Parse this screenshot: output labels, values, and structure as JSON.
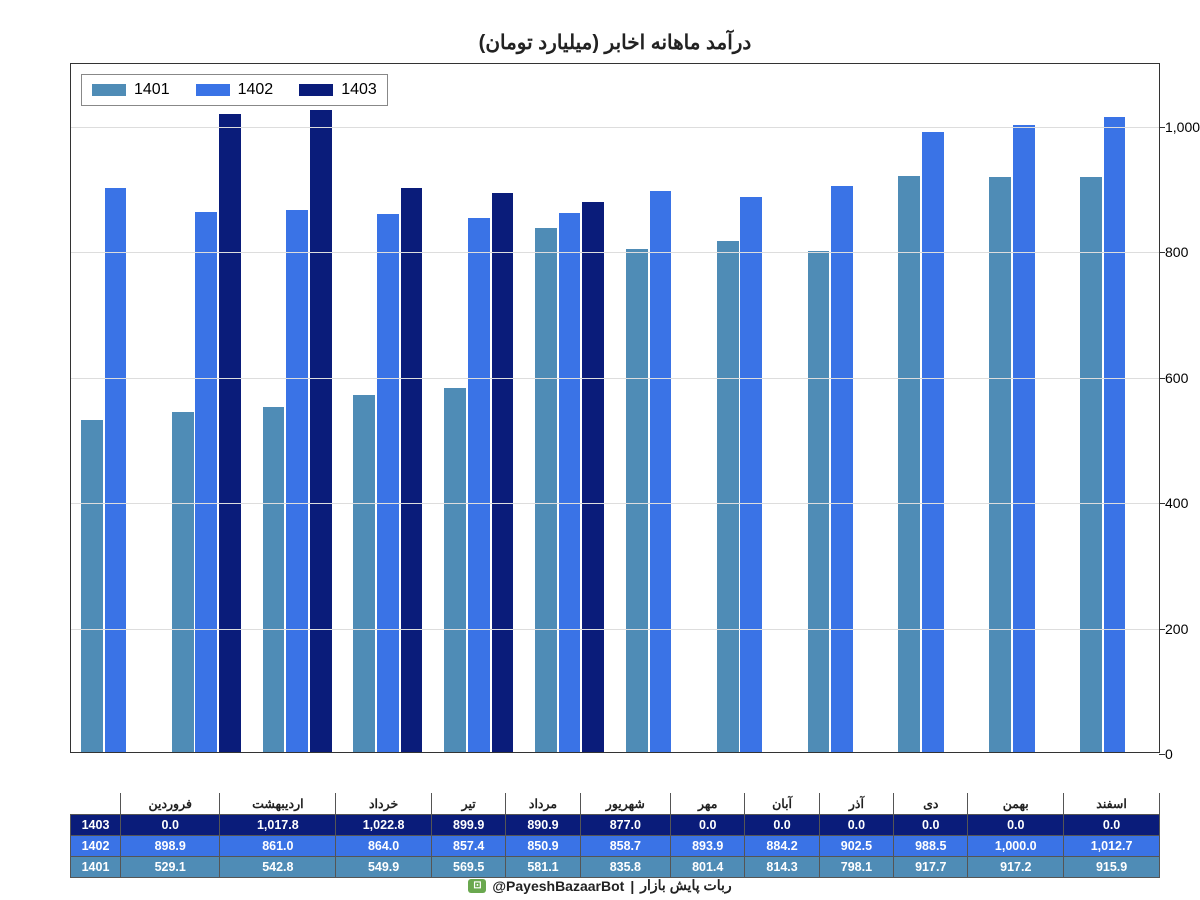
{
  "chart": {
    "type": "bar",
    "title": "درآمد ماهانه اخابر (میلیارد تومان)",
    "title_fontsize": 20,
    "background_color": "#ffffff",
    "border_color": "#333333",
    "grid_color": "#dddddd",
    "ylim": [
      0,
      1100
    ],
    "yticks": [
      0,
      200,
      400,
      600,
      800,
      1000
    ],
    "ytick_labels": [
      "0",
      "200",
      "400",
      "600",
      "800",
      "1,000"
    ],
    "categories": [
      "فروردین",
      "اردیبهشت",
      "خرداد",
      "تیر",
      "مرداد",
      "شهریور",
      "مهر",
      "آبان",
      "آذر",
      "دی",
      "بهمن",
      "اسفند"
    ],
    "series": [
      {
        "name": "1401",
        "color": "#4f8cb6",
        "values": [
          529.1,
          542.8,
          549.9,
          569.5,
          581.1,
          835.8,
          801.4,
          814.3,
          798.1,
          917.7,
          917.2,
          915.9
        ]
      },
      {
        "name": "1402",
        "color": "#3a73e6",
        "values": [
          898.9,
          861.0,
          864.0,
          857.4,
          850.9,
          858.7,
          893.9,
          884.2,
          902.5,
          988.5,
          1000.0,
          1012.7
        ]
      },
      {
        "name": "1403",
        "color": "#0a1c7a",
        "values": [
          0.0,
          1017.8,
          1022.8,
          899.9,
          890.9,
          877.0,
          0.0,
          0.0,
          0.0,
          0.0,
          0.0,
          0.0
        ]
      }
    ],
    "bar_group_width": 0.78,
    "legend_position": "top-left",
    "label_fontsize": 14
  },
  "table": {
    "columns": [
      "1403",
      "1402",
      "1401"
    ],
    "row_colors": {
      "1403": "#0a1c7a",
      "1402": "#3a73e6",
      "1401": "#4f8cb6"
    },
    "months": [
      "فروردین",
      "اردیبهشت",
      "خرداد",
      "تیر",
      "مرداد",
      "شهریور",
      "مهر",
      "آبان",
      "آذر",
      "دی",
      "بهمن",
      "اسفند"
    ],
    "rows": {
      "1403": [
        "0.0",
        "1,017.8",
        "1,022.8",
        "899.9",
        "890.9",
        "877.0",
        "0.0",
        "0.0",
        "0.0",
        "0.0",
        "0.0",
        "0.0"
      ],
      "1402": [
        "898.9",
        "861.0",
        "864.0",
        "857.4",
        "850.9",
        "858.7",
        "893.9",
        "884.2",
        "902.5",
        "988.5",
        "1,000.0",
        "1,012.7"
      ],
      "1401": [
        "529.1",
        "542.8",
        "549.9",
        "569.5",
        "581.1",
        "835.8",
        "801.4",
        "814.3",
        "798.1",
        "917.7",
        "917.2",
        "915.9"
      ]
    }
  },
  "footer": {
    "text_right": "ربات پایش بازار",
    "separator": " | ",
    "handle": "@PayeshBazaarBot"
  }
}
